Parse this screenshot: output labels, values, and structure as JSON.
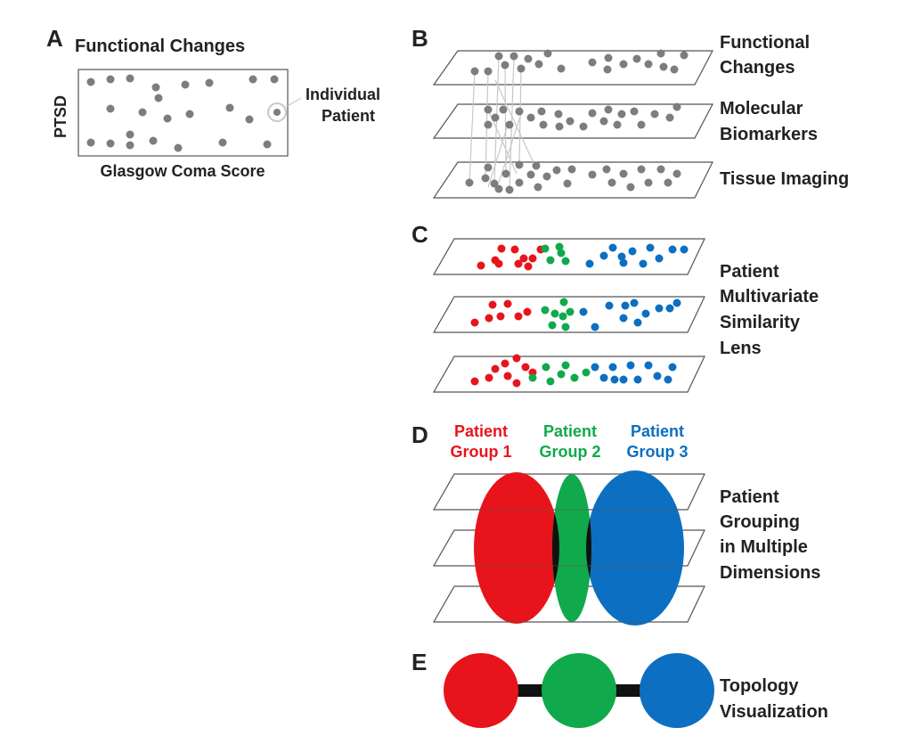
{
  "panels": {
    "a": {
      "letter": "A",
      "title": "Functional Changes",
      "ylabel": "PTSD",
      "xlabel": "Glasgow Coma Score",
      "callout": [
        "Individual",
        "Patient"
      ]
    },
    "b": {
      "letter": "B",
      "layers": [
        [
          "Functional",
          "Changes"
        ],
        [
          "Molecular",
          "Biomarkers"
        ],
        [
          "Tissue Imaging"
        ]
      ]
    },
    "c": {
      "letter": "C",
      "label": [
        "Patient",
        "Multivariate",
        "Similarity",
        "Lens"
      ]
    },
    "d": {
      "letter": "D",
      "groups": [
        {
          "line1": "Patient",
          "line2": "Group 1",
          "color": "#e8141b"
        },
        {
          "line1": "Patient",
          "line2": "Group 2",
          "color": "#10a94b"
        },
        {
          "line1": "Patient",
          "line2": "Group 3",
          "color": "#0c6fc1"
        }
      ],
      "label": [
        "Patient",
        "Grouping",
        "in Multiple",
        "Dimensions"
      ]
    },
    "e": {
      "letter": "E",
      "label": [
        "Topology",
        "Visualization"
      ]
    }
  },
  "colors": {
    "red": "#e8141b",
    "green": "#10a94b",
    "blue": "#0c6fc1",
    "gray_dot": "#7d7d7d"
  }
}
